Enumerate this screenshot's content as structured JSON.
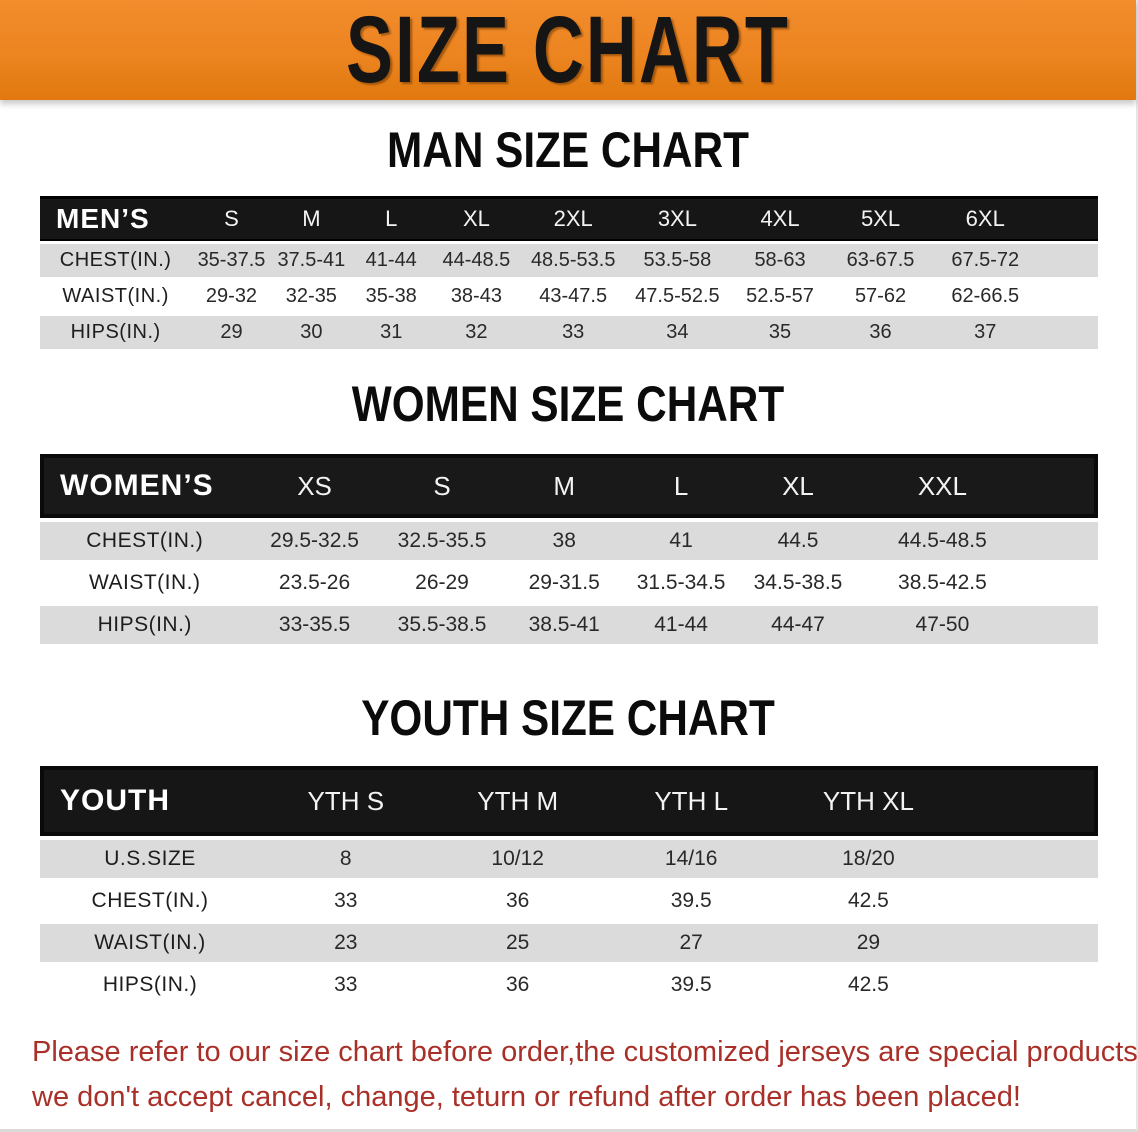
{
  "banner": {
    "title": "SIZE CHART"
  },
  "charts": [
    {
      "heading": "MAN SIZE CHART",
      "header_label": "MEN’S",
      "columns": [
        "S",
        "M",
        "L",
        "XL",
        "2XL",
        "3XL",
        "4XL",
        "5XL",
        "6XL"
      ],
      "rows": [
        {
          "label": "CHEST(IN.)",
          "values": [
            "35-37.5",
            "37.5-41",
            "41-44",
            "44-48.5",
            "48.5-53.5",
            "53.5-58",
            "58-63",
            "63-67.5",
            "67.5-72"
          ]
        },
        {
          "label": "WAIST(IN.)",
          "values": [
            "29-32",
            "32-35",
            "35-38",
            "38-43",
            "43-47.5",
            "47.5-52.5",
            "52.5-57",
            "57-62",
            "62-66.5"
          ]
        },
        {
          "label": "HIPS(IN.)",
          "values": [
            "29",
            "30",
            "31",
            "32",
            "33",
            "34",
            "35",
            "36",
            "37"
          ]
        }
      ]
    },
    {
      "heading": "WOMEN SIZE CHART",
      "header_label": "WOMEN’S",
      "columns": [
        "XS",
        "S",
        "M",
        "L",
        "XL",
        "XXL"
      ],
      "rows": [
        {
          "label": "CHEST(IN.)",
          "values": [
            "29.5-32.5",
            "32.5-35.5",
            "38",
            "41",
            "44.5",
            "44.5-48.5"
          ]
        },
        {
          "label": "WAIST(IN.)",
          "values": [
            "23.5-26",
            "26-29",
            "29-31.5",
            "31.5-34.5",
            "34.5-38.5",
            "38.5-42.5"
          ]
        },
        {
          "label": "HIPS(IN.)",
          "values": [
            "33-35.5",
            "35.5-38.5",
            "38.5-41",
            "41-44",
            "44-47",
            "47-50"
          ]
        }
      ]
    },
    {
      "heading": "YOUTH SIZE CHART",
      "header_label": "YOUTH",
      "columns": [
        "YTH S",
        "YTH M",
        "YTH L",
        "YTH XL"
      ],
      "rows": [
        {
          "label": "U.S.SIZE",
          "values": [
            "8",
            "10/12",
            "14/16",
            "18/20"
          ]
        },
        {
          "label": "CHEST(IN.)",
          "values": [
            "33",
            "36",
            "39.5",
            "42.5"
          ]
        },
        {
          "label": "WAIST(IN.)",
          "values": [
            "23",
            "25",
            "27",
            "29"
          ]
        },
        {
          "label": "HIPS(IN.)",
          "values": [
            "33",
            "36",
            "39.5",
            "42.5"
          ]
        }
      ]
    }
  ],
  "disclaimer": {
    "line1": "Please refer to our size chart before order,the customized jerseys are special products,",
    "line2": "we don't accept cancel, change, teturn or refund after order has been placed!"
  },
  "colors": {
    "banner_bg": "#EC8420",
    "header_bg": "#161616",
    "row_gray": "#DBDBDB",
    "disclaimer_red": "#A93029"
  }
}
